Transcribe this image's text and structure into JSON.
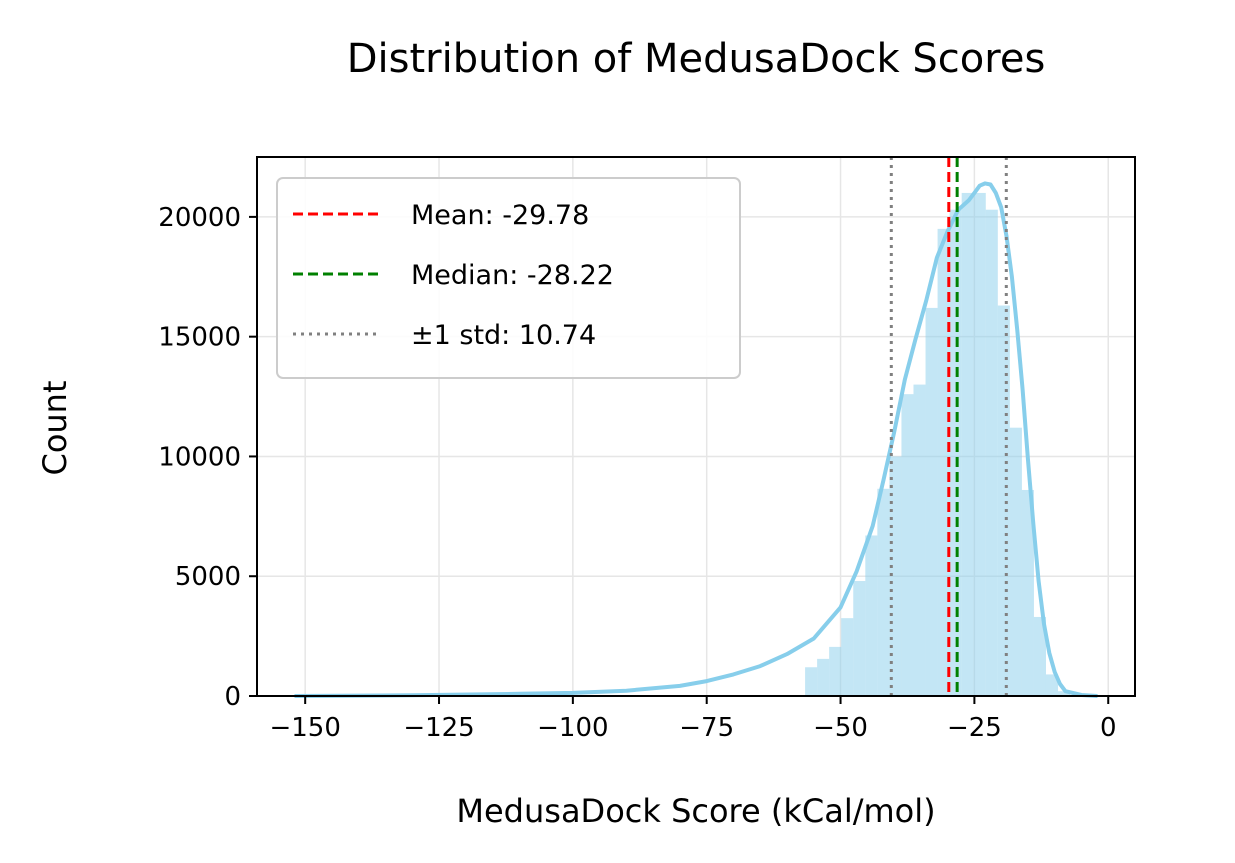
{
  "chart_data": {
    "type": "bar",
    "title": "Distribution of MedusaDock Scores",
    "xlabel": "MedusaDock Score (kCal/mol)",
    "ylabel": "Count",
    "xlim": [
      -159,
      5
    ],
    "ylim": [
      0,
      22500
    ],
    "x_ticks": [
      -150,
      -125,
      -100,
      -75,
      -50,
      -25,
      0
    ],
    "x_tick_labels": [
      "−150",
      "−125",
      "−100",
      "−75",
      "−50",
      "−25",
      "0"
    ],
    "y_ticks": [
      0,
      5000,
      10000,
      15000,
      20000
    ],
    "y_tick_labels": [
      "0",
      "5000",
      "10000",
      "15000",
      "20000"
    ],
    "grid": true,
    "bin_width": 2.25,
    "bins": [
      {
        "x": -55.5,
        "value": 1200
      },
      {
        "x": -53.25,
        "value": 1550
      },
      {
        "x": -51.0,
        "value": 2050
      },
      {
        "x": -48.75,
        "value": 3250
      },
      {
        "x": -46.5,
        "value": 4800
      },
      {
        "x": -44.25,
        "value": 6700
      },
      {
        "x": -42.0,
        "value": 8650
      },
      {
        "x": -39.75,
        "value": 10000
      },
      {
        "x": -37.5,
        "value": 12600
      },
      {
        "x": -35.25,
        "value": 13000
      },
      {
        "x": -33.0,
        "value": 16200
      },
      {
        "x": -30.75,
        "value": 19500
      },
      {
        "x": -28.5,
        "value": 20300
      },
      {
        "x": -26.25,
        "value": 21000
      },
      {
        "x": -24.0,
        "value": 21000
      },
      {
        "x": -21.75,
        "value": 20300
      },
      {
        "x": -19.5,
        "value": 16300
      },
      {
        "x": -17.25,
        "value": 11200
      },
      {
        "x": -15.0,
        "value": 8600
      },
      {
        "x": -12.75,
        "value": 3300
      },
      {
        "x": -10.5,
        "value": 900
      },
      {
        "x": -8.25,
        "value": 200
      }
    ],
    "kde": {
      "name": "",
      "x": [
        -152,
        -130,
        -110,
        -100,
        -90,
        -80,
        -75,
        -70,
        -65,
        -60,
        -55,
        -50,
        -47,
        -44,
        -42,
        -40,
        -38,
        -36,
        -34,
        -32,
        -30,
        -28,
        -26,
        -25,
        -24,
        -23,
        -22,
        -21,
        -20,
        -19,
        -18,
        -17,
        -16,
        -15,
        -14,
        -13,
        -12,
        -11,
        -10,
        -9,
        -8,
        -5,
        -2
      ],
      "y": [
        0,
        30,
        90,
        130,
        220,
        420,
        620,
        900,
        1250,
        1750,
        2400,
        3700,
        5200,
        7100,
        9000,
        11000,
        13200,
        14900,
        16500,
        18300,
        19400,
        20300,
        20700,
        21000,
        21300,
        21400,
        21350,
        21000,
        20400,
        19200,
        17500,
        15300,
        12800,
        9900,
        7200,
        4800,
        3000,
        1800,
        1000,
        500,
        200,
        40,
        0
      ]
    },
    "lines": [
      {
        "name": "Mean: -29.78",
        "x": -29.78,
        "color": "#ff0000",
        "style": "dashed"
      },
      {
        "name": "Median: -28.22",
        "x": -28.22,
        "color": "#008000",
        "style": "dashed"
      },
      {
        "name": "±1 std: 10.74",
        "x": [
          -40.52,
          -19.04
        ],
        "color": "#808080",
        "style": "dotted"
      }
    ],
    "legend_position": "top-left",
    "colors": {
      "bars": "#87ceeb",
      "kde": "#87ceeb",
      "grid": "#e6e6e6"
    }
  }
}
